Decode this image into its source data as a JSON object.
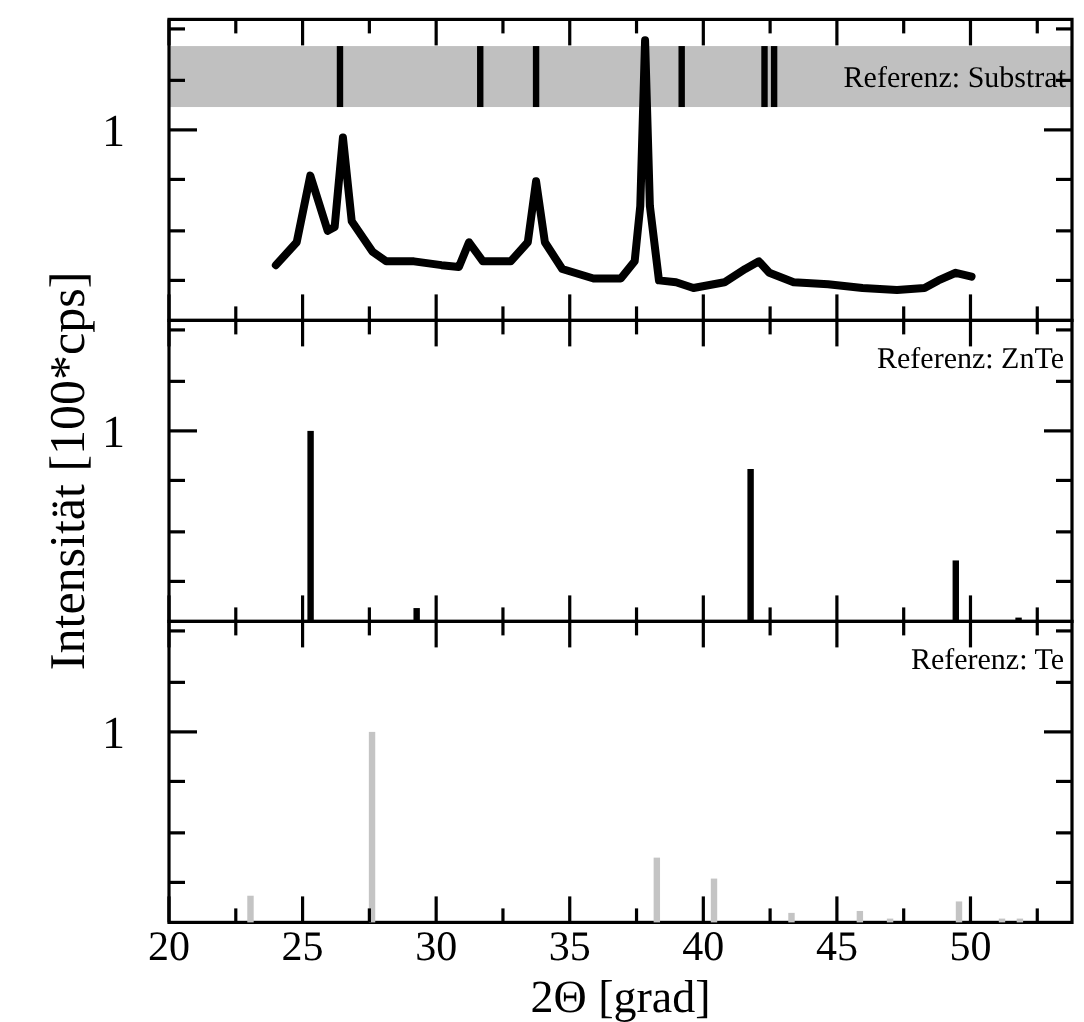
{
  "chart_data": [
    {
      "type": "line",
      "xlim": [
        20,
        53.8
      ],
      "ylim": [
        0,
        1.58
      ],
      "xticks": [
        20,
        {
          "value": 22.5,
          "label": null
        },
        25,
        {
          "value": 27.5,
          "label": null
        },
        30,
        {
          "value": 32.5,
          "label": null
        },
        35,
        {
          "value": 37.5,
          "label": null
        },
        40,
        {
          "value": 42.5,
          "label": null
        },
        45,
        {
          "value": 47.5,
          "label": null
        },
        50,
        {
          "value": 52.5,
          "label": null
        }
      ],
      "yticks": [
        {
          "value": 0.21,
          "label": null
        },
        {
          "value": 0.47,
          "label": null
        },
        {
          "value": 0.74,
          "label": null
        },
        {
          "value": 1,
          "label": "1"
        },
        {
          "value": 1.26,
          "label": null
        },
        {
          "value": 1.53,
          "label": null
        }
      ],
      "tick_labels": "y",
      "bands": [
        {
          "axis": "y",
          "from": 1.12,
          "to": 1.44,
          "label": "Referenz: Substrat",
          "color": "#c0c0c0"
        }
      ],
      "series": [
        {
          "type": "line",
          "color": "#000000",
          "x": [
            24.0,
            24.78,
            25.29,
            25.94,
            26.2,
            26.51,
            26.84,
            27.62,
            28.13,
            29.17,
            30.2,
            30.85,
            31.23,
            31.75,
            32.79,
            33.43,
            33.74,
            34.07,
            34.72,
            35.89,
            36.91,
            37.43,
            37.64,
            37.82,
            38.0,
            38.34,
            38.98,
            39.63,
            40.79,
            41.57,
            42.08,
            42.47,
            43.38,
            44.67,
            45.96,
            47.25,
            48.28,
            48.8,
            49.45,
            50.04
          ],
          "values": [
            0.29,
            0.41,
            0.76,
            0.47,
            0.49,
            0.96,
            0.52,
            0.36,
            0.31,
            0.31,
            0.29,
            0.28,
            0.41,
            0.31,
            0.31,
            0.41,
            0.73,
            0.41,
            0.27,
            0.22,
            0.22,
            0.31,
            0.6,
            1.47,
            0.6,
            0.21,
            0.2,
            0.17,
            0.2,
            0.27,
            0.31,
            0.25,
            0.2,
            0.19,
            0.17,
            0.16,
            0.17,
            0.21,
            0.25,
            0.23
          ]
        },
        {
          "type": "bar",
          "color": "#000000",
          "x": [
            26.4,
            31.65,
            33.74,
            39.19,
            42.29,
            42.65
          ],
          "base": [
            1.12,
            1.12,
            1.12,
            1.12,
            1.12,
            1.12
          ],
          "values": [
            0.32,
            0.32,
            0.32,
            0.32,
            0.32,
            0.32
          ]
        }
      ]
    },
    {
      "type": "bar",
      "xlim": [
        20,
        53.8
      ],
      "ylim": [
        0,
        1.58
      ],
      "xticks": [
        20,
        {
          "value": 22.5,
          "label": null
        },
        25,
        {
          "value": 27.5,
          "label": null
        },
        30,
        {
          "value": 32.5,
          "label": null
        },
        35,
        {
          "value": 37.5,
          "label": null
        },
        40,
        {
          "value": 42.5,
          "label": null
        },
        45,
        {
          "value": 47.5,
          "label": null
        },
        50,
        {
          "value": 52.5,
          "label": null
        }
      ],
      "yticks": [
        {
          "value": 0.21,
          "label": null
        },
        {
          "value": 0.47,
          "label": null
        },
        {
          "value": 0.74,
          "label": null
        },
        {
          "value": 1,
          "label": "1"
        },
        {
          "value": 1.26,
          "label": null
        },
        {
          "value": 1.53,
          "label": null
        }
      ],
      "tick_labels": "y",
      "ylabel": "Intensität [100*cps]",
      "annotations": [
        "Referenz: ZnTe"
      ],
      "series": [
        {
          "color": "#000000",
          "x": [
            25.3,
            29.27,
            41.77,
            49.45,
            51.8
          ],
          "values": [
            1,
            0.07,
            0.8,
            0.32,
            0.02
          ]
        }
      ]
    },
    {
      "type": "bar",
      "xlim": [
        20,
        53.8
      ],
      "ylim": [
        0,
        1.58
      ],
      "xticks": [
        20,
        {
          "value": 22.5,
          "label": null
        },
        25,
        {
          "value": 27.5,
          "label": null
        },
        30,
        {
          "value": 32.5,
          "label": null
        },
        35,
        {
          "value": 37.5,
          "label": null
        },
        40,
        {
          "value": 42.5,
          "label": null
        },
        45,
        {
          "value": 47.5,
          "label": null
        },
        50,
        {
          "value": 52.5,
          "label": null
        }
      ],
      "yticks": [
        {
          "value": 0.21,
          "label": null
        },
        {
          "value": 0.47,
          "label": null
        },
        {
          "value": 0.74,
          "label": null
        },
        {
          "value": 1,
          "label": "1"
        },
        {
          "value": 1.26,
          "label": null
        },
        {
          "value": 1.53,
          "label": null
        }
      ],
      "xlabel": "2Θ [grad]",
      "annotations": [
        "Referenz: Te"
      ],
      "series": [
        {
          "color": "#c4c4c4",
          "x": [
            23.05,
            27.6,
            38.26,
            40.4,
            43.3,
            45.86,
            46.99,
            49.57,
            51.18,
            51.85
          ],
          "values": [
            0.14,
            1,
            0.34,
            0.23,
            0.05,
            0.06,
            0.02,
            0.11,
            0.02,
            0.02
          ]
        }
      ]
    }
  ]
}
